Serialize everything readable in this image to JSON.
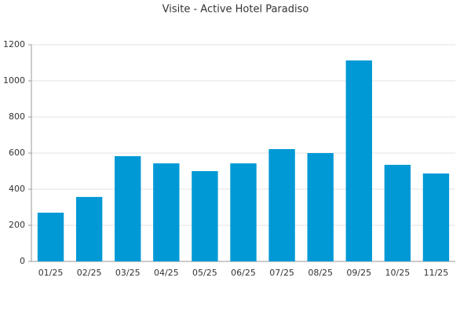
{
  "chart_data": {
    "type": "bar",
    "title": "Visite - Active Hotel Paradiso",
    "categories": [
      "01/25",
      "02/25",
      "03/25",
      "04/25",
      "05/25",
      "06/25",
      "07/25",
      "08/25",
      "09/25",
      "10/25",
      "11/25"
    ],
    "values": [
      270,
      357,
      583,
      543,
      500,
      543,
      622,
      600,
      1113,
      535,
      487
    ],
    "color": "#0099d6",
    "ylim": [
      0,
      1200
    ],
    "yticks": [
      0,
      200,
      400,
      600,
      800,
      1000,
      1200
    ],
    "grid": true
  }
}
